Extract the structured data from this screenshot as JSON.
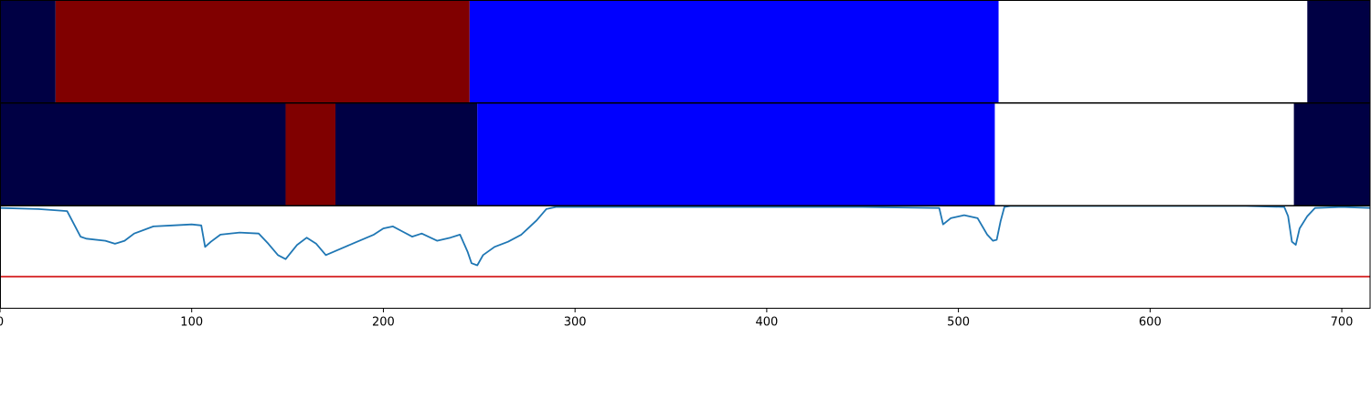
{
  "chart_data": [
    {
      "type": "heatmap",
      "panel": "top",
      "xlim": [
        0,
        715
      ],
      "segments": [
        {
          "start": 0,
          "end": 29,
          "color": "#000044"
        },
        {
          "start": 29,
          "end": 245,
          "color": "#800000"
        },
        {
          "start": 245,
          "end": 521,
          "color": "#0000ff"
        },
        {
          "start": 521,
          "end": 682,
          "color": "#ffffff"
        },
        {
          "start": 682,
          "end": 715,
          "color": "#000044"
        }
      ]
    },
    {
      "type": "heatmap",
      "panel": "middle",
      "xlim": [
        0,
        715
      ],
      "segments": [
        {
          "start": 0,
          "end": 149,
          "color": "#000044"
        },
        {
          "start": 149,
          "end": 175,
          "color": "#800000"
        },
        {
          "start": 175,
          "end": 249,
          "color": "#000044"
        },
        {
          "start": 249,
          "end": 519,
          "color": "#0000ff"
        },
        {
          "start": 519,
          "end": 675,
          "color": "#ffffff"
        },
        {
          "start": 675,
          "end": 715,
          "color": "#000044"
        }
      ]
    },
    {
      "type": "line",
      "panel": "bottom",
      "xlim": [
        0,
        715
      ],
      "ylim": [
        0,
        1
      ],
      "xticks": [
        0,
        100,
        200,
        300,
        400,
        500,
        600,
        700
      ],
      "xtick_labels": [
        "0",
        "100",
        "200",
        "300",
        "400",
        "500",
        "600",
        "700"
      ],
      "series": [
        {
          "color": "#1f77b4",
          "x": [
            0,
            20,
            35,
            42,
            45,
            55,
            60,
            65,
            70,
            80,
            90,
            100,
            105,
            107,
            110,
            115,
            125,
            135,
            140,
            145,
            149,
            155,
            160,
            165,
            170,
            175,
            180,
            185,
            195,
            200,
            205,
            210,
            215,
            220,
            228,
            235,
            240,
            244,
            246,
            249,
            252,
            258,
            265,
            272,
            280,
            285,
            290,
            300,
            350,
            400,
            450,
            490,
            492,
            496,
            503,
            510,
            515,
            518,
            520,
            522,
            524,
            527,
            540,
            600,
            650,
            670,
            672,
            674,
            676,
            678,
            682,
            686,
            700,
            715
          ],
          "y": [
            0.98,
            0.97,
            0.95,
            0.7,
            0.68,
            0.66,
            0.63,
            0.66,
            0.73,
            0.8,
            0.81,
            0.82,
            0.81,
            0.6,
            0.65,
            0.72,
            0.74,
            0.73,
            0.63,
            0.52,
            0.48,
            0.62,
            0.69,
            0.63,
            0.52,
            0.56,
            0.6,
            0.64,
            0.72,
            0.78,
            0.8,
            0.75,
            0.7,
            0.73,
            0.66,
            0.69,
            0.72,
            0.55,
            0.44,
            0.42,
            0.52,
            0.6,
            0.65,
            0.72,
            0.86,
            0.97,
            0.99,
            0.99,
            0.99,
            0.99,
            0.99,
            0.98,
            0.82,
            0.88,
            0.91,
            0.88,
            0.72,
            0.66,
            0.67,
            0.85,
            0.99,
            1.0,
            1.0,
            1.0,
            1.0,
            0.99,
            0.9,
            0.65,
            0.62,
            0.78,
            0.9,
            0.98,
            0.99,
            0.98
          ]
        },
        {
          "color": "#d62728",
          "x": [
            0,
            715
          ],
          "y": [
            0.31,
            0.31
          ]
        }
      ]
    }
  ]
}
